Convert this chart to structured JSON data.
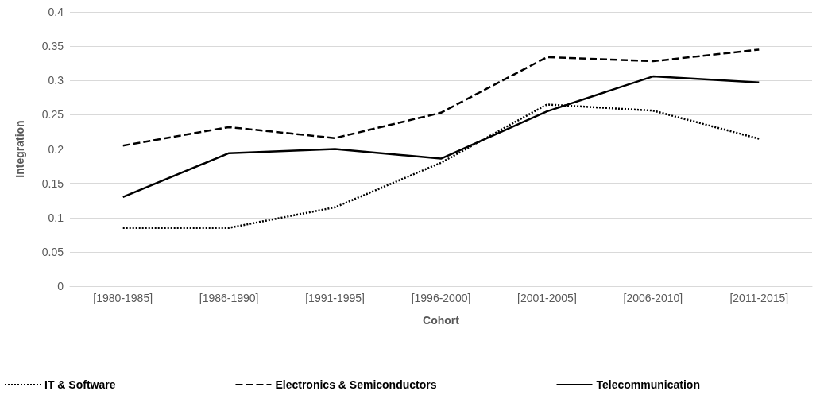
{
  "chart_data": {
    "type": "line",
    "xlabel": "Cohort",
    "ylabel": "Integration",
    "categories": [
      "[1980-1985]",
      "[1986-1990]",
      "[1991-1995]",
      "[1996-2000]",
      "[2001-2005]",
      "[2006-2010]",
      "[2011-2015]"
    ],
    "series": [
      {
        "name": "IT & Software",
        "color": "#000000",
        "line_style": "dotted",
        "values": [
          0.085,
          0.085,
          0.115,
          0.18,
          0.265,
          0.256,
          0.215
        ]
      },
      {
        "name": "Electronics & Semiconductors",
        "color": "#000000",
        "line_style": "dashed",
        "values": [
          0.205,
          0.232,
          0.216,
          0.253,
          0.334,
          0.328,
          0.345
        ]
      },
      {
        "name": "Telecommunication",
        "color": "#000000",
        "line_style": "solid",
        "values": [
          0.13,
          0.194,
          0.2,
          0.186,
          0.255,
          0.306,
          0.297
        ]
      }
    ],
    "ylim": [
      0,
      0.4
    ],
    "yticks": [
      0,
      0.05,
      0.1,
      0.15,
      0.2,
      0.25,
      0.3,
      0.35,
      0.4
    ],
    "grid": "y",
    "legend": "bottom",
    "marker": "none"
  }
}
